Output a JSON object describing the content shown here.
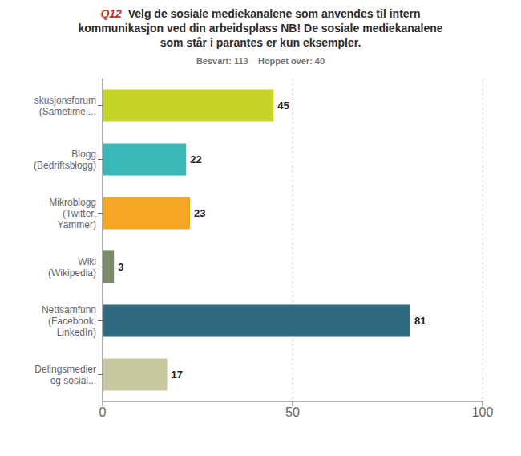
{
  "chart_data": {
    "type": "bar",
    "title": "Q12  Velg de sosiale mediekanalene som anvendes til intern\nkommunikasjon ved din arbeidsplass NB! De sosiale mediekanalene\nsom står i parantes er kun eksempler.",
    "subtitle": "Besvart: 113    Hoppet over: 40",
    "categories": [
      "skusjonsforum\n(Sametime,...",
      "Blogg\n(Bedriftsblogg)",
      "Mikroblogg\n(Twitter,\nYammer)",
      "Wiki\n(Wikipedia)",
      "Nettsamfunn\n(Facebook,\nLinkedIn)",
      "Delingsmedier\nog sosial..."
    ],
    "values": [
      45,
      22,
      23,
      3,
      81,
      17
    ],
    "colors": [
      "#c5d327",
      "#3ab8b8",
      "#f5a623",
      "#7a8a6a",
      "#2e6b80",
      "#c8c8a0"
    ],
    "orientation": "horizontal",
    "xlim": [
      0,
      100
    ],
    "xticks": [
      0,
      50,
      100
    ],
    "grid": true,
    "data_labels": true
  }
}
